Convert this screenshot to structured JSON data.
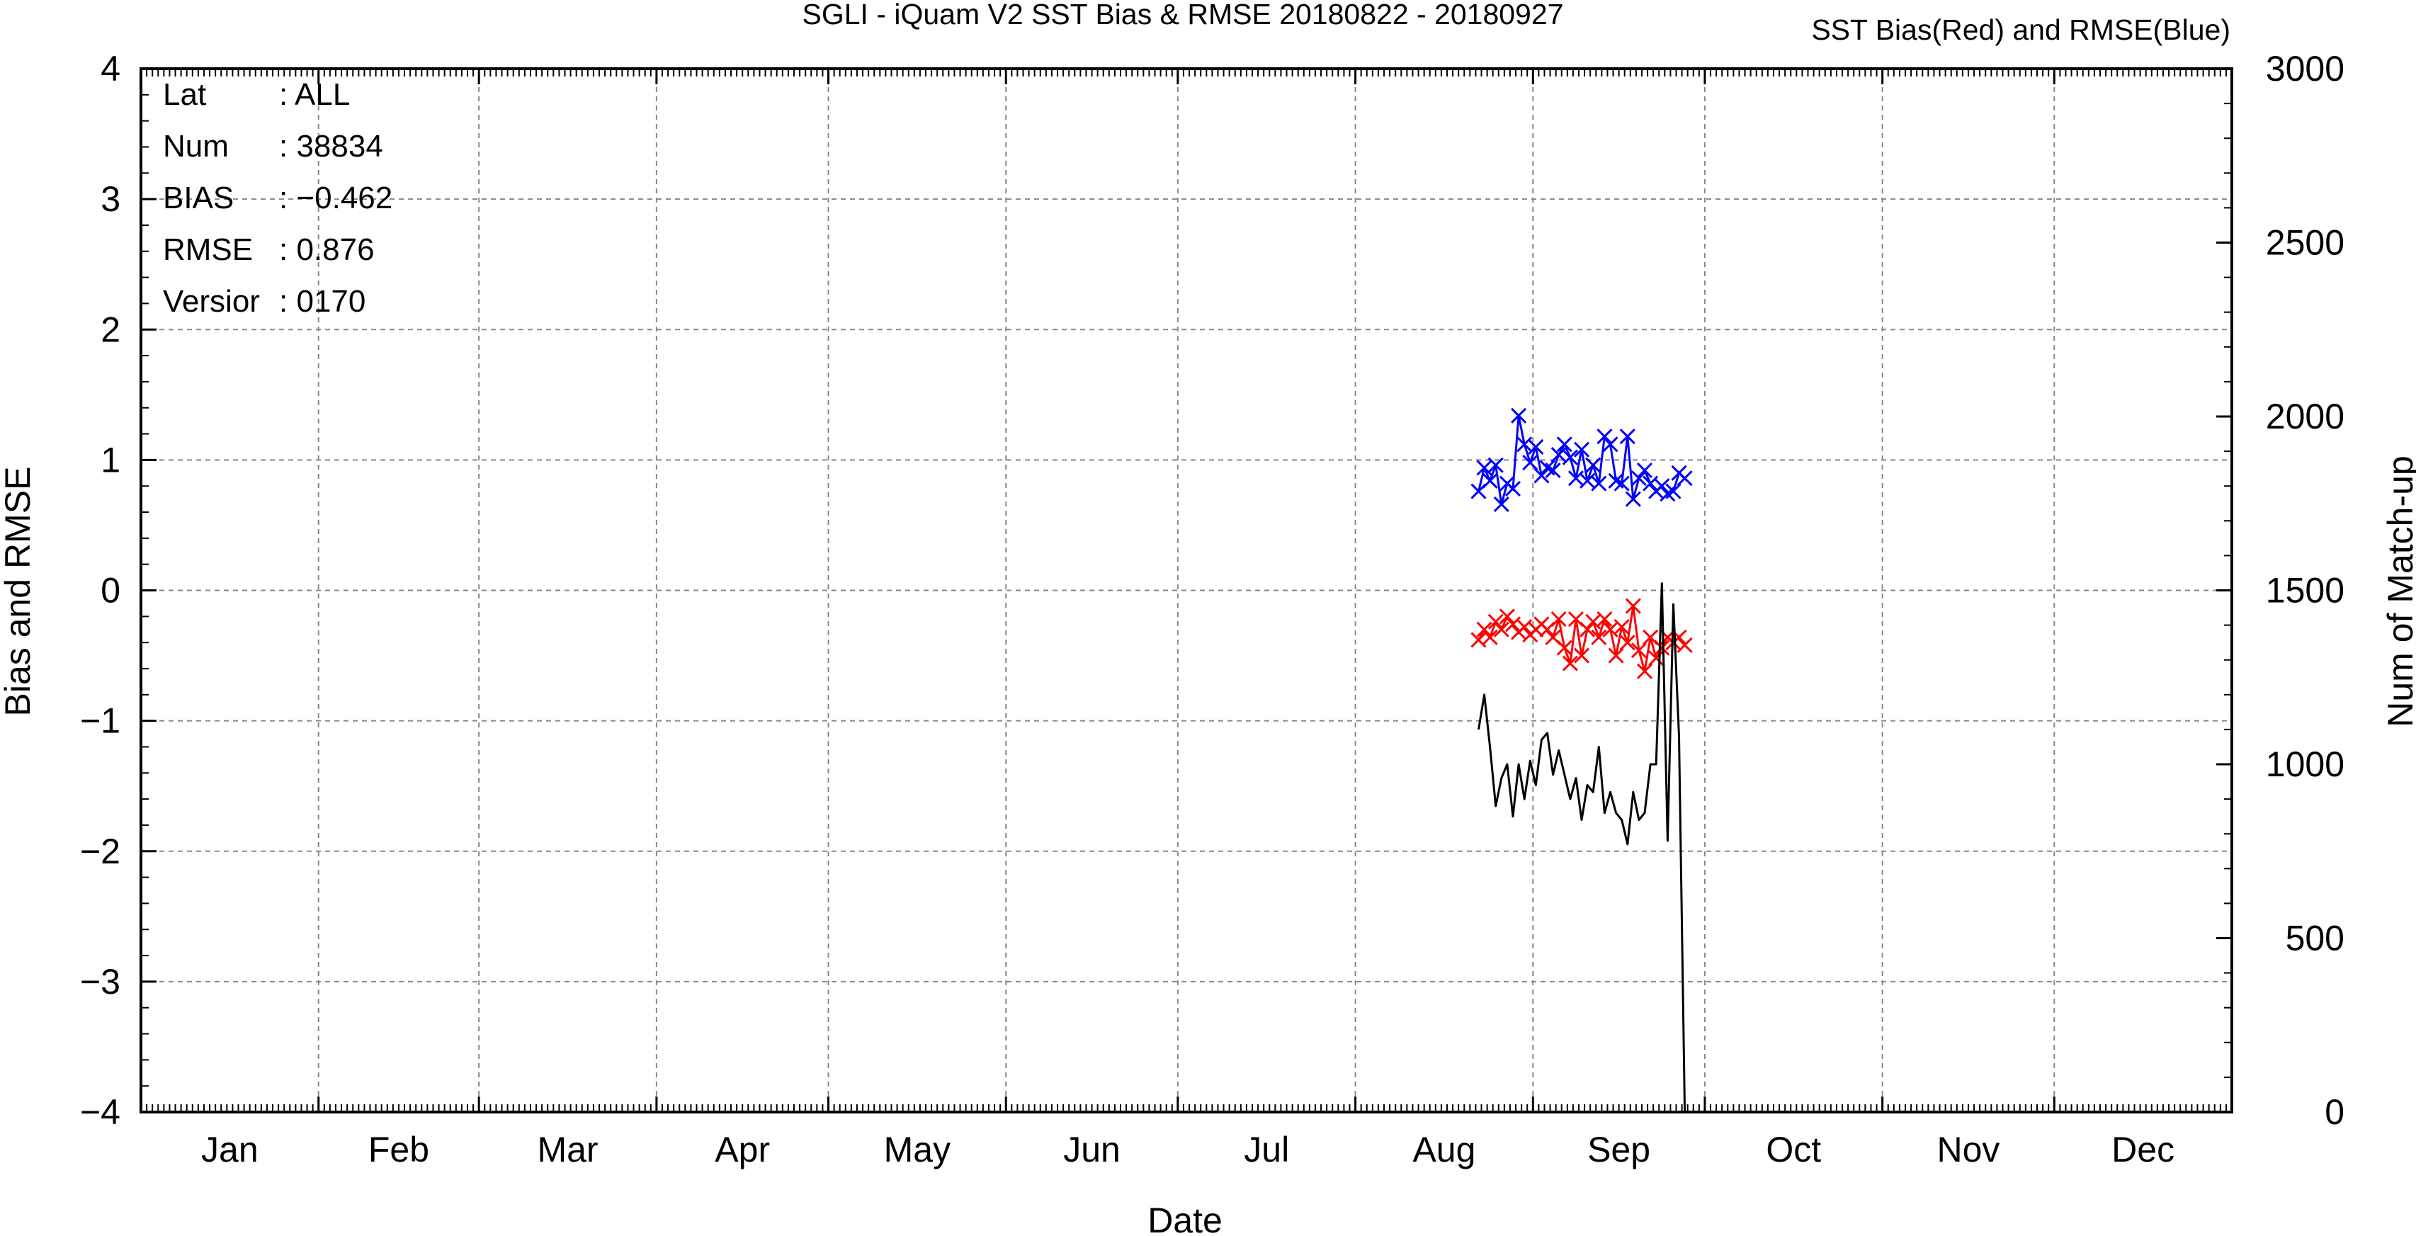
{
  "chart_data": {
    "type": "line",
    "title": "SGLI - iQuam V2 SST Bias & RMSE 20180822 - 20180927",
    "subtitle": "SST Bias(Red) and RMSE(Blue)",
    "xlabel": "Date",
    "ylabel": "Bias and RMSE",
    "y2label": "Num of Match-up",
    "ylim": [
      -4,
      4
    ],
    "y2lim": [
      0,
      3000
    ],
    "xlim": [
      0,
      365
    ],
    "grid": true,
    "yticks": [
      "-4",
      "-3",
      "-2",
      "-1",
      "0",
      "1",
      "2",
      "3",
      "4"
    ],
    "y2ticks": [
      "0",
      "500",
      "1000",
      "1500",
      "2000",
      "2500",
      "3000"
    ],
    "months": [
      "Jan",
      "Feb",
      "Mar",
      "Apr",
      "May",
      "Jun",
      "Jul",
      "Aug",
      "Sep",
      "Oct",
      "Nov",
      "Dec"
    ],
    "info": [
      {
        "key": "Lat",
        "value": ": ALL"
      },
      {
        "key": "Num",
        "value": ": 38834"
      },
      {
        "key": "BIAS",
        "value": ": −0.462"
      },
      {
        "key": "RMSE",
        "value": ": 0.876"
      },
      {
        "key": "Versior",
        "value": ": 0170"
      }
    ],
    "series": [
      {
        "color": "#ff0000",
        "axis": "left",
        "marker": "x",
        "x": [
          "2018-08-22",
          "2018-08-23",
          "2018-08-24",
          "2018-08-25",
          "2018-08-26",
          "2018-08-27",
          "2018-08-28",
          "2018-08-29",
          "2018-08-30",
          "2018-08-31",
          "2018-09-01",
          "2018-09-02",
          "2018-09-03",
          "2018-09-04",
          "2018-09-05",
          "2018-09-06",
          "2018-09-07",
          "2018-09-08",
          "2018-09-09",
          "2018-09-10",
          "2018-09-11",
          "2018-09-12",
          "2018-09-13",
          "2018-09-14",
          "2018-09-15",
          "2018-09-16",
          "2018-09-17",
          "2018-09-18",
          "2018-09-19",
          "2018-09-20",
          "2018-09-21",
          "2018-09-22",
          "2018-09-23",
          "2018-09-24",
          "2018-09-25",
          "2018-09-26",
          "2018-09-27"
        ],
        "values": [
          -0.38,
          -0.3,
          -0.36,
          -0.24,
          -0.3,
          -0.2,
          -0.26,
          -0.32,
          -0.28,
          -0.34,
          -0.3,
          -0.26,
          -0.3,
          -0.36,
          -0.22,
          -0.44,
          -0.56,
          -0.22,
          -0.5,
          -0.3,
          -0.24,
          -0.36,
          -0.22,
          -0.3,
          -0.5,
          -0.28,
          -0.4,
          -0.12,
          -0.46,
          -0.62,
          -0.36,
          -0.52,
          -0.44,
          -0.36,
          -0.4,
          -0.36,
          -0.42
        ]
      },
      {
        "color": "#0000ff",
        "axis": "left",
        "marker": "x",
        "x": [
          "2018-08-22",
          "2018-08-23",
          "2018-08-24",
          "2018-08-25",
          "2018-08-26",
          "2018-08-27",
          "2018-08-28",
          "2018-08-29",
          "2018-08-30",
          "2018-08-31",
          "2018-09-01",
          "2018-09-02",
          "2018-09-03",
          "2018-09-04",
          "2018-09-05",
          "2018-09-06",
          "2018-09-07",
          "2018-09-08",
          "2018-09-09",
          "2018-09-10",
          "2018-09-11",
          "2018-09-12",
          "2018-09-13",
          "2018-09-14",
          "2018-09-15",
          "2018-09-16",
          "2018-09-17",
          "2018-09-18",
          "2018-09-19",
          "2018-09-20",
          "2018-09-21",
          "2018-09-22",
          "2018-09-23",
          "2018-09-24",
          "2018-09-25",
          "2018-09-26",
          "2018-09-27"
        ],
        "values": [
          0.76,
          0.94,
          0.84,
          0.96,
          0.66,
          0.82,
          0.78,
          1.34,
          1.12,
          0.98,
          1.1,
          0.88,
          0.94,
          0.92,
          1.04,
          1.12,
          1.02,
          0.86,
          1.08,
          0.84,
          0.96,
          0.82,
          1.18,
          1.12,
          0.84,
          0.82,
          1.18,
          0.7,
          0.86,
          0.92,
          0.82,
          0.76,
          0.8,
          0.74,
          0.76,
          0.9,
          0.86
        ]
      },
      {
        "color": "#000000",
        "axis": "right",
        "marker": "none",
        "x": [
          "2018-08-22",
          "2018-08-23",
          "2018-08-24",
          "2018-08-25",
          "2018-08-26",
          "2018-08-27",
          "2018-08-28",
          "2018-08-29",
          "2018-08-30",
          "2018-08-31",
          "2018-09-01",
          "2018-09-02",
          "2018-09-03",
          "2018-09-04",
          "2018-09-05",
          "2018-09-06",
          "2018-09-07",
          "2018-09-08",
          "2018-09-09",
          "2018-09-10",
          "2018-09-11",
          "2018-09-12",
          "2018-09-13",
          "2018-09-14",
          "2018-09-15",
          "2018-09-16",
          "2018-09-17",
          "2018-09-18",
          "2018-09-19",
          "2018-09-20",
          "2018-09-21",
          "2018-09-22",
          "2018-09-23",
          "2018-09-24",
          "2018-09-25",
          "2018-09-26",
          "2018-09-27"
        ],
        "values": [
          1100,
          1200,
          1050,
          880,
          960,
          1000,
          850,
          1000,
          900,
          1010,
          940,
          1070,
          1090,
          970,
          1040,
          970,
          900,
          960,
          840,
          940,
          920,
          1050,
          860,
          920,
          860,
          840,
          770,
          920,
          840,
          860,
          1000,
          1000,
          1520,
          780,
          1460,
          1080,
          0
        ]
      }
    ]
  }
}
